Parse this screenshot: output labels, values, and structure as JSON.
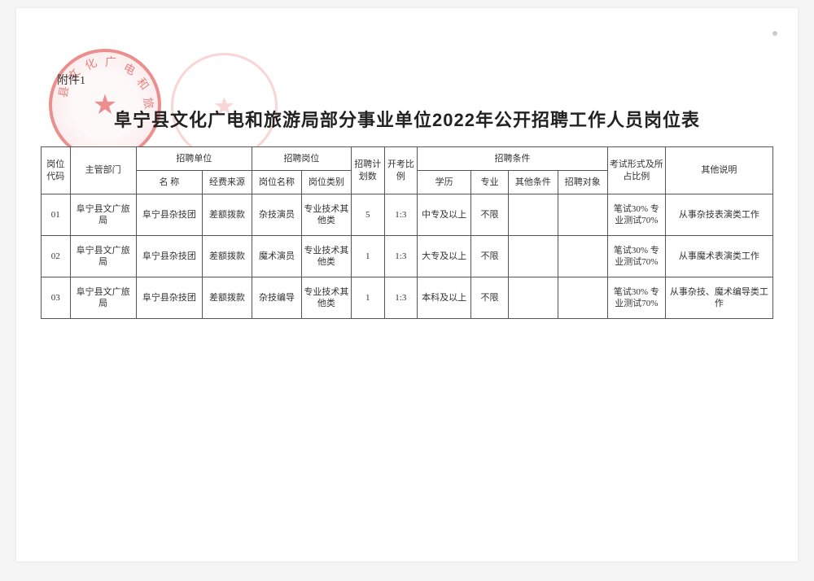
{
  "attachment_label": "附件1",
  "title": "阜宁县文化广电和旅游局部分事业单位2022年公开招聘工作人员岗位表",
  "stamp1_chars": [
    "县",
    "文",
    "化",
    "广",
    "电",
    "和",
    "旅"
  ],
  "headers": {
    "code": "岗位代码",
    "dept": "主管部门",
    "unit_group": "招聘单位",
    "unit_name": "名  称",
    "unit_fund": "经费来源",
    "post_group": "招聘岗位",
    "post_name": "岗位名称",
    "post_type": "岗位类别",
    "plan": "招聘计划数",
    "ratio": "开考比例",
    "cond_group": "招聘条件",
    "cond_edu": "学历",
    "cond_major": "专业",
    "cond_other": "其他条件",
    "cond_target": "招聘对象",
    "exam": "考试形式及所占比例",
    "remark": "其他说明"
  },
  "rows": [
    {
      "code": "01",
      "dept": "阜宁县文广旅局",
      "unit_name": "阜宁县杂技团",
      "unit_fund": "差额拨款",
      "post_name": "杂技演员",
      "post_type": "专业技术其他类",
      "plan": "5",
      "ratio": "1:3",
      "edu": "中专及以上",
      "major": "不限",
      "other": "",
      "target": "",
      "exam": "笔试30% 专业测试70%",
      "remark": "从事杂技表演类工作"
    },
    {
      "code": "02",
      "dept": "阜宁县文广旅局",
      "unit_name": "阜宁县杂技团",
      "unit_fund": "差额拨款",
      "post_name": "魔术演员",
      "post_type": "专业技术其他类",
      "plan": "1",
      "ratio": "1:3",
      "edu": "大专及以上",
      "major": "不限",
      "other": "",
      "target": "",
      "exam": "笔试30% 专业测试70%",
      "remark": "从事魔术表演类工作"
    },
    {
      "code": "03",
      "dept": "阜宁县文广旅局",
      "unit_name": "阜宁县杂技团",
      "unit_fund": "差额拨款",
      "post_name": "杂技编导",
      "post_type": "专业技术其他类",
      "plan": "1",
      "ratio": "1:3",
      "edu": "本科及以上",
      "major": "不限",
      "other": "",
      "target": "",
      "exam": "笔试30% 专业测试70%",
      "remark": "从事杂技、魔术编导类工作"
    }
  ],
  "col_widths_pct": [
    3.5,
    8,
    8,
    6,
    6,
    6,
    4,
    4,
    6.5,
    4.5,
    6,
    6,
    7,
    13
  ],
  "colors": {
    "stamp": "#d33",
    "stamp_light": "#e88",
    "border": "#555555",
    "text": "#333333",
    "page_bg": "#ffffff"
  }
}
